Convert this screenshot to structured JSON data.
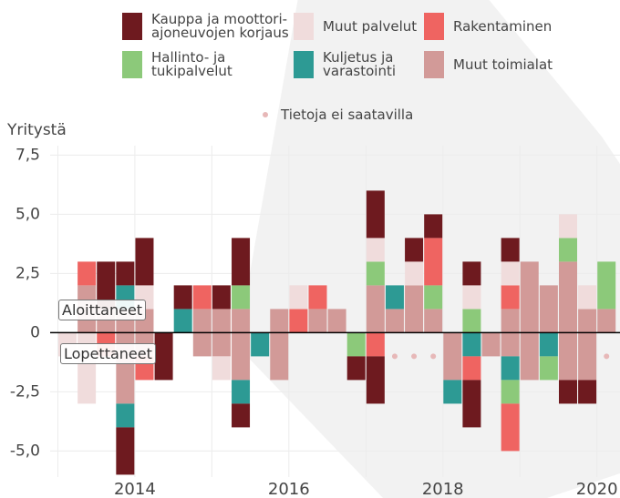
{
  "chart_data": {
    "type": "stacked-bar",
    "y_label": "Yritystä",
    "annotations": [
      "Aloittaneet",
      "Lopettaneet"
    ],
    "missing_note": "Tietoja ei saatavilla",
    "missing_color": "#e7b8b8",
    "x": [
      2013.125,
      2013.375,
      2013.625,
      2013.875,
      2014.125,
      2014.375,
      2014.625,
      2014.875,
      2015.125,
      2015.375,
      2015.625,
      2015.875,
      2016.125,
      2016.375,
      2016.625,
      2016.875,
      2017.125,
      2017.375,
      2017.625,
      2017.875,
      2018.125,
      2018.375,
      2018.625,
      2018.875,
      2019.125,
      2019.375,
      2019.625,
      2019.875,
      2020.125
    ],
    "xlim": [
      2012.9,
      2020.3
    ],
    "xticks": [
      2014,
      2016,
      2018,
      2020
    ],
    "xminor": [
      2013,
      2015,
      2017,
      2019
    ],
    "ylim": [
      -6.1,
      7.9
    ],
    "yticks": [
      {
        "value": 7.5,
        "label": "7,5"
      },
      {
        "value": 5,
        "label": "5,0"
      },
      {
        "value": 2.5,
        "label": "2,5"
      },
      0,
      {
        "value": -2.5,
        "label": "-2,5"
      },
      {
        "value": -5,
        "label": "-5,0"
      }
    ],
    "grid": true,
    "series": [
      {
        "name": "Muut toimialat",
        "color": "#d29a98",
        "values": [
          0,
          2,
          1,
          1,
          1,
          0,
          0,
          1,
          1,
          1,
          0,
          1,
          0,
          1,
          1,
          0,
          2,
          1,
          2,
          1,
          0,
          0,
          0,
          1,
          3,
          2,
          3,
          1,
          1
        ],
        "ends": [
          0,
          0,
          0,
          -3,
          -1,
          0,
          0,
          -1,
          -1,
          -2,
          0,
          -2,
          0,
          0,
          0,
          0,
          0,
          null,
          null,
          null,
          -2,
          0,
          -1,
          -1,
          -2,
          0,
          -2,
          -2,
          null
        ]
      },
      {
        "name": "Kuljetus ja\nvarastointi",
        "color": "#2d9a94",
        "values": [
          0,
          0,
          0,
          1,
          0,
          0,
          1,
          0,
          0,
          0,
          0,
          0,
          0,
          0,
          0,
          0,
          0,
          1,
          0,
          0,
          0,
          0,
          0,
          0,
          0,
          0,
          0,
          0,
          0
        ],
        "ends": [
          0,
          0,
          0,
          -1,
          0,
          0,
          0,
          0,
          0,
          -1,
          -1,
          0,
          0,
          0,
          0,
          0,
          0,
          null,
          null,
          null,
          -1,
          -1,
          0,
          -1,
          0,
          -1,
          0,
          0,
          null
        ]
      },
      {
        "name": "Hallinto- ja\ntukipalvelut",
        "color": "#8cc97a",
        "values": [
          0,
          0,
          0,
          0,
          0,
          0,
          0,
          0,
          0,
          1,
          0,
          0,
          0,
          0,
          0,
          0,
          1,
          0,
          0,
          1,
          0,
          1,
          0,
          0,
          0,
          0,
          1,
          0,
          2
        ],
        "ends": [
          0,
          0,
          0,
          0,
          0,
          0,
          0,
          0,
          0,
          0,
          0,
          0,
          0,
          0,
          0,
          -1,
          0,
          null,
          null,
          null,
          0,
          0,
          0,
          -1,
          0,
          -1,
          0,
          0,
          null
        ]
      },
      {
        "name": "Rakentaminen",
        "color": "#ef6461",
        "values": [
          0,
          1,
          0,
          0,
          0,
          0,
          0,
          1,
          0,
          0,
          0,
          0,
          1,
          1,
          0,
          0,
          0,
          0,
          0,
          2,
          0,
          0,
          0,
          1,
          0,
          0,
          0,
          0,
          0
        ],
        "ends": [
          0,
          0,
          -1,
          0,
          -1,
          0,
          0,
          0,
          0,
          0,
          0,
          0,
          0,
          0,
          0,
          0,
          -1,
          null,
          null,
          null,
          0,
          -1,
          0,
          -2,
          0,
          0,
          0,
          0,
          null
        ]
      },
      {
        "name": "Muut palvelut",
        "color": "#f0dcdc",
        "values": [
          0,
          0,
          0,
          0,
          1,
          0,
          0,
          0,
          0,
          0,
          0,
          0,
          1,
          0,
          0,
          0,
          1,
          0,
          1,
          0,
          0,
          1,
          0,
          1,
          0,
          0,
          1,
          1,
          0
        ],
        "ends": [
          -1,
          -3,
          0,
          0,
          0,
          0,
          0,
          0,
          -1,
          0,
          0,
          0,
          0,
          0,
          0,
          0,
          0,
          null,
          null,
          null,
          0,
          0,
          0,
          0,
          0,
          0,
          0,
          0,
          null
        ]
      },
      {
        "name": "Kauppa ja moottori-\najoneuvojen korjaus",
        "color": "#6e1a1f",
        "values": [
          0,
          0,
          2,
          1,
          2,
          0,
          1,
          0,
          1,
          2,
          0,
          0,
          0,
          0,
          0,
          0,
          2,
          0,
          1,
          1,
          0,
          1,
          0,
          1,
          0,
          0,
          0,
          0,
          0
        ],
        "ends": [
          0,
          0,
          0,
          -2,
          0,
          -2,
          0,
          0,
          0,
          -1,
          0,
          0,
          0,
          0,
          0,
          -1,
          -2,
          null,
          null,
          null,
          0,
          -2,
          0,
          0,
          0,
          0,
          -1,
          -1,
          null
        ]
      }
    ]
  }
}
